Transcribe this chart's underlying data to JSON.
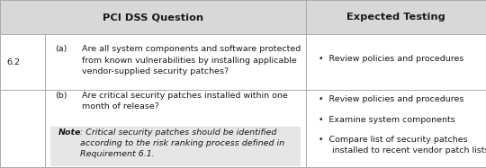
{
  "title_row": [
    "PCI DSS Question",
    "Expected Testing"
  ],
  "section_num": "6.2",
  "row_a_question_label": "(a)",
  "row_a_question_text": "Are all system components and software protected\nfrom known vulnerabilities by installing applicable\nvendor-supplied security patches?",
  "row_a_testing": "•  Review policies and procedures",
  "row_b_question_label": "(b)",
  "row_b_question_text": "Are critical security patches installed within one\nmonth of release?",
  "row_b_note_bold": "Note",
  "row_b_note_italic": ": Critical security patches should be identified\naccording to the risk ranking process defined in\nRequirement 6.1.",
  "row_b_testing": [
    "•  Review policies and procedures",
    "•  Examine system components",
    "•  Compare list of security patches\n     installed to recent vendor patch lists"
  ],
  "header_bg": "#d8d8d8",
  "note_bg": "#e6e6e6",
  "white": "#ffffff",
  "border_color": "#aaaaaa",
  "text_color": "#1a1a1a",
  "font_size": 6.8,
  "header_font_size": 8.2,
  "fig_width": 5.4,
  "fig_height": 1.87,
  "dpi": 100
}
